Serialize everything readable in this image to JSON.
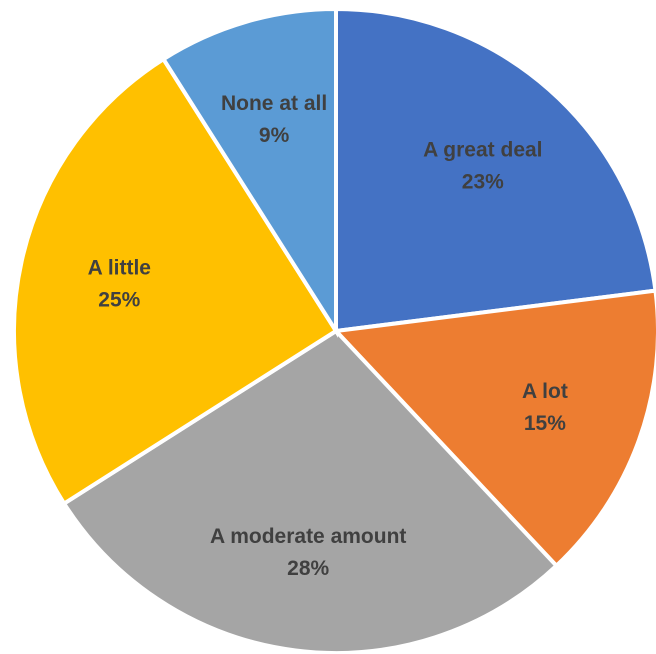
{
  "chart_data": {
    "type": "pie",
    "title": "",
    "start_angle_deg": 0,
    "direction": "clockwise",
    "legend": "none",
    "slices": [
      {
        "label": "A great deal",
        "value": 23,
        "value_label": "23%",
        "color": "#4472C4"
      },
      {
        "label": "A lot",
        "value": 15,
        "value_label": "15%",
        "color": "#ED7D31"
      },
      {
        "label": "A moderate amount",
        "value": 28,
        "value_label": "28%",
        "color": "#A5A5A5"
      },
      {
        "label": "A little",
        "value": 25,
        "value_label": "25%",
        "color": "#FFC000"
      },
      {
        "label": "None at all",
        "value": 9,
        "value_label": "9%",
        "color": "#5B9BD5"
      }
    ]
  }
}
